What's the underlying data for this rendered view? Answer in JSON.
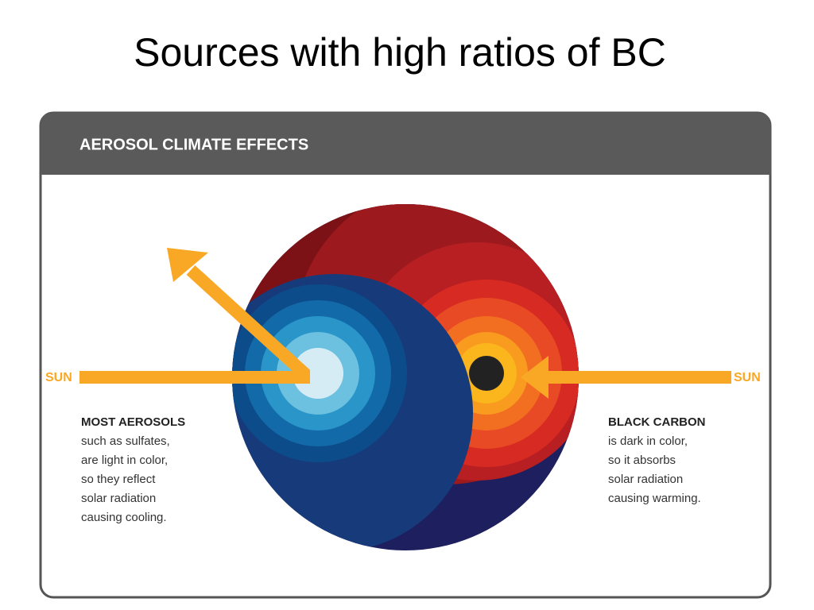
{
  "title": "Sources with high ratios of BC",
  "panel": {
    "header": "AEROSOL CLIMATE EFFECTS",
    "sun_left": "SUN",
    "sun_right": "SUN",
    "left_note": {
      "heading": "MOST AEROSOLS",
      "lines": [
        "such as sulfates,",
        "are light in color,",
        "so they reflect",
        "solar radiation",
        "causing cooling."
      ]
    },
    "right_note": {
      "heading": "BLACK CARBON",
      "lines": [
        "is dark in color,",
        "so it absorbs",
        "solar radiation",
        "causing warming."
      ]
    }
  }
}
